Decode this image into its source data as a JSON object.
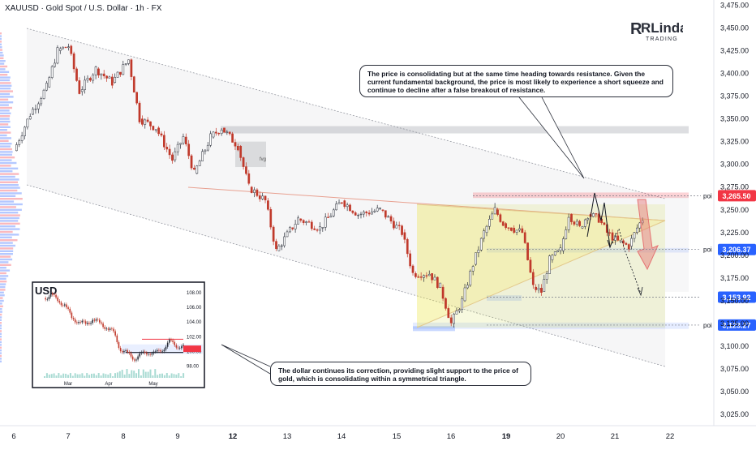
{
  "header": {
    "symbol_line": "XAUUSD · Gold Spot / U.S. Dollar · 1h · FX"
  },
  "logo": {
    "brand": "RLinda",
    "sub": "TRADING"
  },
  "colors": {
    "up": "#089981",
    "down": "#f23645",
    "candle": "#c0392b",
    "zone": "#b2b5be",
    "poi_red": "#f23645",
    "poi_blue": "#2962ff",
    "triangle": "#ffeb3b",
    "arrow": "#e57373"
  },
  "annotations": {
    "top": "The price is consolidating but at the same time heading towards resistance. Given the current fundamental background, the price is most likely to experience a short squeeze and continue to decline after a false breakout of resistance.",
    "bottom": "The dollar continues its correction, providing slight support to the price of gold, which is consolidating within a symmetrical triangle.",
    "fvg": "fvg"
  },
  "chart_data": [
    {
      "type": "candlestick",
      "title": "XAUUSD · Gold Spot / U.S. Dollar · 1h · FX",
      "x_ticks": [
        "6",
        "7",
        "8",
        "9",
        "12",
        "13",
        "14",
        "15",
        "16",
        "19",
        "20",
        "21",
        "22"
      ],
      "bold_x_ticks": [
        "12",
        "19"
      ],
      "y_ticks": [
        3475,
        3450,
        3425,
        3400,
        3375,
        3350,
        3325,
        3300,
        3275,
        3250,
        3225,
        3200,
        3175,
        3150,
        3125,
        3100,
        3075,
        3050,
        3025
      ],
      "ylim": [
        3018,
        3478
      ],
      "path_approx": [
        {
          "x": 6.0,
          "price": 3315
        },
        {
          "x": 6.3,
          "price": 3355
        },
        {
          "x": 6.6,
          "price": 3385
        },
        {
          "x": 6.8,
          "price": 3425
        },
        {
          "x": 7.0,
          "price": 3430
        },
        {
          "x": 7.2,
          "price": 3380
        },
        {
          "x": 7.5,
          "price": 3405
        },
        {
          "x": 7.8,
          "price": 3390
        },
        {
          "x": 8.1,
          "price": 3415
        },
        {
          "x": 8.3,
          "price": 3350
        },
        {
          "x": 8.6,
          "price": 3340
        },
        {
          "x": 8.9,
          "price": 3305
        },
        {
          "x": 9.1,
          "price": 3330
        },
        {
          "x": 9.3,
          "price": 3290
        },
        {
          "x": 9.6,
          "price": 3330
        },
        {
          "x": 9.8,
          "price": 3340
        },
        {
          "x": 10.1,
          "price": 3320
        },
        {
          "x": 10.3,
          "price": 3275
        },
        {
          "x": 10.6,
          "price": 3260
        },
        {
          "x": 10.8,
          "price": 3205
        },
        {
          "x": 11.2,
          "price": 3240
        },
        {
          "x": 11.6,
          "price": 3230
        },
        {
          "x": 12.0,
          "price": 3260
        },
        {
          "x": 12.3,
          "price": 3245
        },
        {
          "x": 12.7,
          "price": 3250
        },
        {
          "x": 13.1,
          "price": 3225
        },
        {
          "x": 13.3,
          "price": 3180
        },
        {
          "x": 13.6,
          "price": 3180
        },
        {
          "x": 13.8,
          "price": 3165
        },
        {
          "x": 14.0,
          "price": 3125
        },
        {
          "x": 14.2,
          "price": 3150
        },
        {
          "x": 14.4,
          "price": 3190
        },
        {
          "x": 14.6,
          "price": 3225
        },
        {
          "x": 14.8,
          "price": 3250
        },
        {
          "x": 14.95,
          "price": 3235
        },
        {
          "x": 15.1,
          "price": 3230
        },
        {
          "x": 15.3,
          "price": 3225
        },
        {
          "x": 15.5,
          "price": 3165
        },
        {
          "x": 15.65,
          "price": 3160
        },
        {
          "x": 15.8,
          "price": 3195
        },
        {
          "x": 16.0,
          "price": 3205
        },
        {
          "x": 16.15,
          "price": 3245
        },
        {
          "x": 16.35,
          "price": 3230
        },
        {
          "x": 16.5,
          "price": 3245
        },
        {
          "x": 16.7,
          "price": 3240
        },
        {
          "x": 16.85,
          "price": 3225
        },
        {
          "x": 17.05,
          "price": 3215
        },
        {
          "x": 17.25,
          "price": 3210
        },
        {
          "x": 17.4,
          "price": 3230
        },
        {
          "x": 17.5,
          "price": 3240
        }
      ],
      "levels": [
        {
          "label": "poi",
          "price_tag": "3,265.50",
          "value": 3265.5,
          "color": "#f23645"
        },
        {
          "label": "poi",
          "price_tag": "3,206.37",
          "value": 3206.37,
          "color": "#2962ff"
        },
        {
          "label": "",
          "price_tag": "3,153.92",
          "value": 3153.92,
          "color": "#2962ff"
        },
        {
          "label": "poi",
          "price_tag": "3,123.27",
          "value": 3123.27,
          "color": "#2962ff"
        }
      ],
      "zones": [
        {
          "name": "supply",
          "from": 3334,
          "to": 3342
        },
        {
          "name": "fvg",
          "from": 3297,
          "to": 3325
        },
        {
          "name": "resistance-red",
          "from": 3263,
          "to": 3269
        },
        {
          "name": "support-mid",
          "from": 3203,
          "to": 3208
        },
        {
          "name": "support-low",
          "from": 3150,
          "to": 3156
        },
        {
          "name": "support-base",
          "from": 3119,
          "to": 3126
        }
      ]
    },
    {
      "type": "line",
      "title": "USD",
      "x_ticks": [
        "Mar",
        "Apr",
        "May"
      ],
      "y_ticks": [
        108.0,
        106.0,
        104.0,
        102.0,
        100.0,
        98.0
      ],
      "ylim": [
        97.0,
        108.5
      ],
      "x": [
        0,
        5,
        10,
        15,
        20,
        25,
        30,
        35,
        40,
        45,
        50,
        55,
        60,
        65,
        70,
        75,
        80,
        85,
        90,
        95,
        100
      ],
      "values": [
        107.2,
        107.6,
        107.0,
        106.2,
        104.6,
        103.9,
        103.7,
        104.3,
        103.8,
        103.2,
        102.5,
        100.2,
        99.6,
        99.0,
        99.5,
        99.9,
        99.6,
        100.3,
        101.2,
        100.8,
        100.5
      ]
    }
  ]
}
